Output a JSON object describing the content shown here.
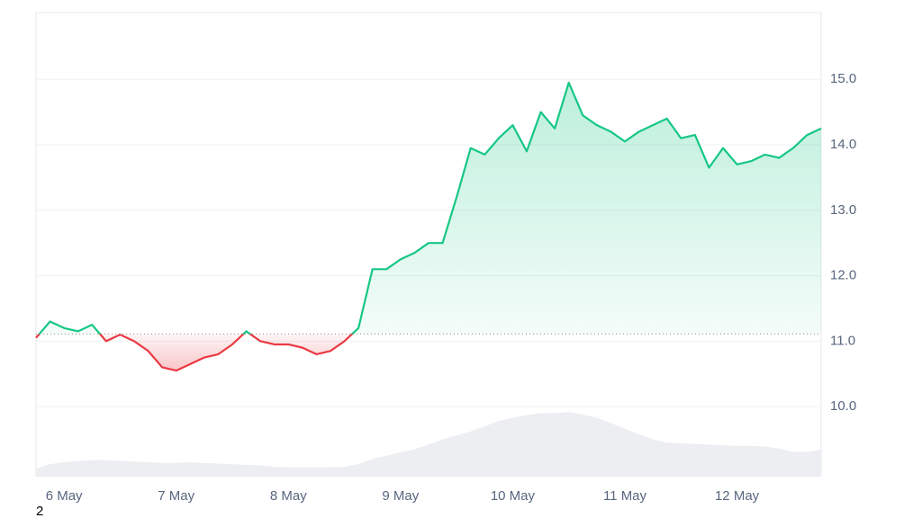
{
  "chart_data": {
    "type": "line",
    "series": [
      {
        "color": "#16c784",
        "values": [
          11.05,
          11.3,
          11.2,
          11.15,
          11.25,
          11.0,
          11.1,
          11.0,
          10.85,
          10.6,
          10.55,
          10.65,
          10.75,
          10.8,
          10.95,
          11.15,
          11.0,
          10.95,
          10.95,
          10.9,
          10.8,
          10.85,
          11.0,
          11.2,
          12.1,
          12.1,
          12.25,
          12.35,
          12.5,
          12.5,
          13.2,
          13.95,
          13.85,
          14.1,
          14.3,
          13.9,
          14.5,
          14.25,
          14.95,
          14.45,
          14.3,
          14.2,
          14.05,
          14.2,
          14.3,
          14.4,
          14.1,
          14.15,
          13.65,
          13.95,
          13.7,
          13.75,
          13.85,
          13.8,
          13.95,
          14.15,
          14.25
        ]
      }
    ],
    "below_color": "#ea3943",
    "baseline": 11.11,
    "volume": {
      "color": "#eceef2",
      "values": [
        9.05,
        9.12,
        9.15,
        9.17,
        9.18,
        9.18,
        9.17,
        9.16,
        9.15,
        9.14,
        9.14,
        9.15,
        9.14,
        9.13,
        9.12,
        9.11,
        9.1,
        9.08,
        9.07,
        9.07,
        9.07,
        9.07,
        9.08,
        9.12,
        9.2,
        9.25,
        9.3,
        9.35,
        9.42,
        9.5,
        9.56,
        9.62,
        9.7,
        9.78,
        9.83,
        9.87,
        9.9,
        9.9,
        9.92,
        9.88,
        9.83,
        9.75,
        9.66,
        9.58,
        9.5,
        9.45,
        9.44,
        9.43,
        9.42,
        9.41,
        9.4,
        9.4,
        9.39,
        9.36,
        9.31,
        9.31,
        9.34
      ]
    },
    "xlim": [
      0,
      56
    ],
    "xticks": [
      {
        "value": 2,
        "label": "6 May"
      },
      {
        "value": 10,
        "label": "7 May"
      },
      {
        "value": 18,
        "label": "8 May"
      },
      {
        "value": 26,
        "label": "9 May"
      },
      {
        "value": 34,
        "label": "10 May"
      },
      {
        "value": 42,
        "label": "11 May"
      },
      {
        "value": 50,
        "label": "12 May"
      }
    ],
    "ylim": [
      8.93,
      16.02
    ],
    "yticks": [
      {
        "value": 10,
        "label": "10.0"
      },
      {
        "value": 11,
        "label": "11.0"
      },
      {
        "value": 12,
        "label": "12.0"
      },
      {
        "value": 13,
        "label": "13.0"
      },
      {
        "value": 14,
        "label": "14.0"
      },
      {
        "value": 15,
        "label": "15.0"
      }
    ],
    "grid": true,
    "footnote": "2"
  }
}
